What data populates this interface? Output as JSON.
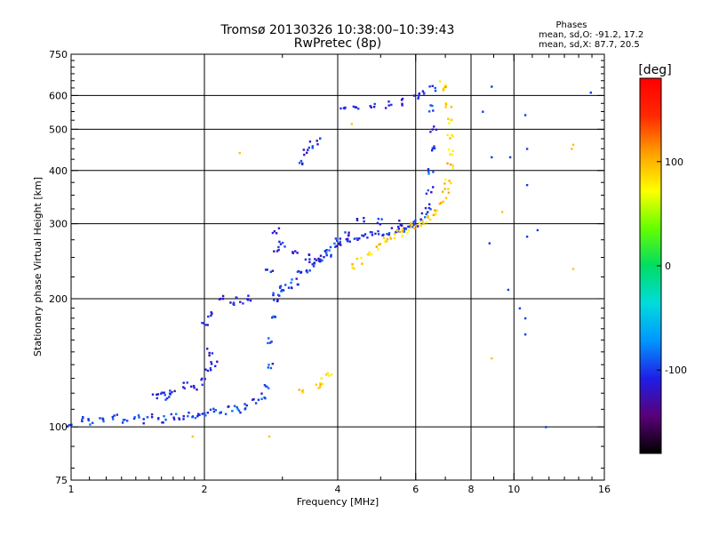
{
  "chart_data": {
    "type": "scatter",
    "title": "Tromsø 20130326 10:38:00–10:39:43",
    "subtitle": "RwPretec (8p)",
    "xlabel": "Frequency [MHz]",
    "ylabel": "Stationary phase Virtual Height [km]",
    "x_scale": "log",
    "y_scale": "log",
    "xlim": [
      1,
      16
    ],
    "ylim": [
      75,
      750
    ],
    "x_ticks": [
      1,
      2,
      4,
      6,
      8,
      10,
      16
    ],
    "x_tick_labels": [
      "1",
      "2",
      "4",
      "6",
      "8",
      "10",
      "16"
    ],
    "x_minor_ticks": [
      3,
      5,
      7,
      9,
      11,
      12,
      13,
      14,
      15
    ],
    "y_ticks": [
      75,
      100,
      200,
      300,
      400,
      500,
      600,
      750
    ],
    "y_tick_labels": [
      "75",
      "100",
      "200",
      "300",
      "400",
      "500",
      "600",
      "750"
    ],
    "grid_x": [
      2,
      4,
      6,
      8,
      10
    ],
    "grid_y": [
      100,
      200,
      300,
      400,
      500,
      600
    ],
    "grid": true,
    "phase_stats": {
      "heading": "Phases",
      "line_o": "mean, sd,O: -91.2, 17.2",
      "line_x": "mean, sd,X:  87.7, 20.5"
    },
    "colorbar": {
      "label": "[deg]",
      "range": [
        -180,
        180
      ],
      "ticks": [
        100,
        0,
        -100
      ],
      "tick_labels": [
        "100",
        "0",
        "-100"
      ],
      "colormap": [
        "#000000",
        "#5a0078",
        "#1e1ee6",
        "#0096ff",
        "#00dcdc",
        "#00dc64",
        "#64ff00",
        "#ffff00",
        "#ffa000",
        "#ff2800",
        "#ff0000"
      ]
    },
    "series": [
      {
        "trace": "O",
        "phase": -100,
        "points": [
          [
            1.0,
            102
          ],
          [
            1.05,
            104
          ],
          [
            1.1,
            103
          ],
          [
            1.18,
            104
          ],
          [
            1.25,
            105
          ],
          [
            1.32,
            104
          ],
          [
            1.4,
            105
          ],
          [
            1.48,
            104
          ],
          [
            1.55,
            106
          ],
          [
            1.62,
            104
          ],
          [
            1.7,
            106
          ],
          [
            1.78,
            106
          ],
          [
            1.85,
            107
          ],
          [
            1.92,
            107
          ],
          [
            2.0,
            108
          ],
          [
            2.1,
            109
          ],
          [
            2.2,
            109
          ],
          [
            2.3,
            110
          ],
          [
            2.4,
            110
          ],
          [
            2.5,
            112
          ],
          [
            2.6,
            114
          ],
          [
            2.7,
            118
          ],
          [
            2.75,
            125
          ],
          [
            2.8,
            140
          ],
          [
            2.82,
            160
          ],
          [
            2.85,
            180
          ],
          [
            2.88,
            195
          ],
          [
            2.9,
            205
          ],
          [
            2.95,
            210
          ],
          [
            3.0,
            212
          ],
          [
            3.1,
            215
          ],
          [
            3.2,
            220
          ],
          [
            3.3,
            228
          ],
          [
            3.4,
            235
          ],
          [
            3.5,
            240
          ],
          [
            3.6,
            245
          ],
          [
            3.7,
            250
          ],
          [
            3.8,
            260
          ],
          [
            3.9,
            268
          ],
          [
            4.0,
            272
          ],
          [
            4.2,
            276
          ],
          [
            4.4,
            278
          ],
          [
            4.6,
            280
          ],
          [
            4.8,
            282
          ],
          [
            5.0,
            285
          ],
          [
            5.2,
            288
          ],
          [
            5.4,
            290
          ],
          [
            5.6,
            293
          ],
          [
            5.8,
            296
          ],
          [
            6.0,
            300
          ],
          [
            6.2,
            305
          ],
          [
            6.3,
            315
          ],
          [
            6.4,
            330
          ],
          [
            6.45,
            360
          ],
          [
            6.5,
            400
          ],
          [
            6.5,
            450
          ],
          [
            6.55,
            500
          ],
          [
            6.55,
            560
          ],
          [
            6.55,
            620
          ]
        ]
      },
      {
        "trace": "O-echo",
        "phase": -110,
        "points": [
          [
            1.55,
            118
          ],
          [
            1.6,
            120
          ],
          [
            1.65,
            118
          ],
          [
            1.7,
            122
          ],
          [
            1.8,
            125
          ],
          [
            1.9,
            124
          ],
          [
            2.0,
            128
          ],
          [
            2.05,
            135
          ],
          [
            2.1,
            140
          ],
          [
            2.05,
            150
          ],
          [
            2.0,
            175
          ],
          [
            2.05,
            185
          ],
          [
            2.2,
            200
          ],
          [
            2.3,
            195
          ],
          [
            2.4,
            198
          ],
          [
            2.5,
            200
          ],
          [
            2.8,
            230
          ],
          [
            2.9,
            260
          ],
          [
            2.9,
            290
          ],
          [
            3.0,
            270
          ],
          [
            3.2,
            255
          ],
          [
            3.4,
            250
          ],
          [
            3.6,
            248
          ],
          [
            3.8,
            255
          ],
          [
            4.0,
            270
          ],
          [
            4.2,
            285
          ],
          [
            4.5,
            305
          ],
          [
            5.0,
            305
          ],
          [
            5.5,
            300
          ],
          [
            5.8,
            298
          ],
          [
            3.3,
            420
          ],
          [
            3.4,
            440
          ],
          [
            3.5,
            460
          ],
          [
            3.6,
            470
          ],
          [
            4.1,
            560
          ],
          [
            4.4,
            560
          ],
          [
            4.8,
            565
          ],
          [
            5.2,
            570
          ],
          [
            5.6,
            580
          ],
          [
            6.0,
            600
          ],
          [
            6.2,
            610
          ]
        ]
      },
      {
        "trace": "X",
        "phase": 90,
        "points": [
          [
            4.3,
            240
          ],
          [
            4.5,
            245
          ],
          [
            4.7,
            255
          ],
          [
            4.9,
            265
          ],
          [
            5.1,
            275
          ],
          [
            5.3,
            280
          ],
          [
            5.5,
            285
          ],
          [
            5.7,
            290
          ],
          [
            5.9,
            295
          ],
          [
            6.1,
            300
          ],
          [
            6.3,
            305
          ],
          [
            6.5,
            310
          ],
          [
            6.7,
            320
          ],
          [
            6.9,
            340
          ],
          [
            7.0,
            360
          ],
          [
            7.1,
            380
          ],
          [
            7.15,
            410
          ],
          [
            7.2,
            440
          ],
          [
            7.2,
            480
          ],
          [
            7.2,
            520
          ],
          [
            7.1,
            570
          ],
          [
            7.0,
            620
          ],
          [
            6.9,
            640
          ],
          [
            3.6,
            125
          ],
          [
            3.7,
            128
          ],
          [
            3.8,
            132
          ],
          [
            3.3,
            120
          ]
        ]
      },
      {
        "trace": "scattered",
        "phase": -100,
        "points": [
          [
            8.9,
            630
          ],
          [
            8.5,
            550
          ],
          [
            8.9,
            430
          ],
          [
            8.8,
            270
          ],
          [
            10.6,
            540
          ],
          [
            10.7,
            450
          ],
          [
            10.7,
            370
          ],
          [
            10.7,
            280
          ],
          [
            11.3,
            290
          ],
          [
            9.7,
            210
          ],
          [
            10.3,
            190
          ],
          [
            10.6,
            180
          ],
          [
            10.6,
            165
          ],
          [
            9.8,
            430
          ],
          [
            14.9,
            610
          ],
          [
            11.8,
            100
          ]
        ]
      },
      {
        "trace": "scattered-x",
        "phase": 95,
        "points": [
          [
            13.5,
            450
          ],
          [
            13.6,
            460
          ],
          [
            13.6,
            235
          ],
          [
            8.9,
            145
          ],
          [
            9.4,
            320
          ],
          [
            2.4,
            440
          ],
          [
            1.88,
            95
          ],
          [
            2.8,
            95
          ],
          [
            4.3,
            515
          ]
        ]
      }
    ]
  }
}
